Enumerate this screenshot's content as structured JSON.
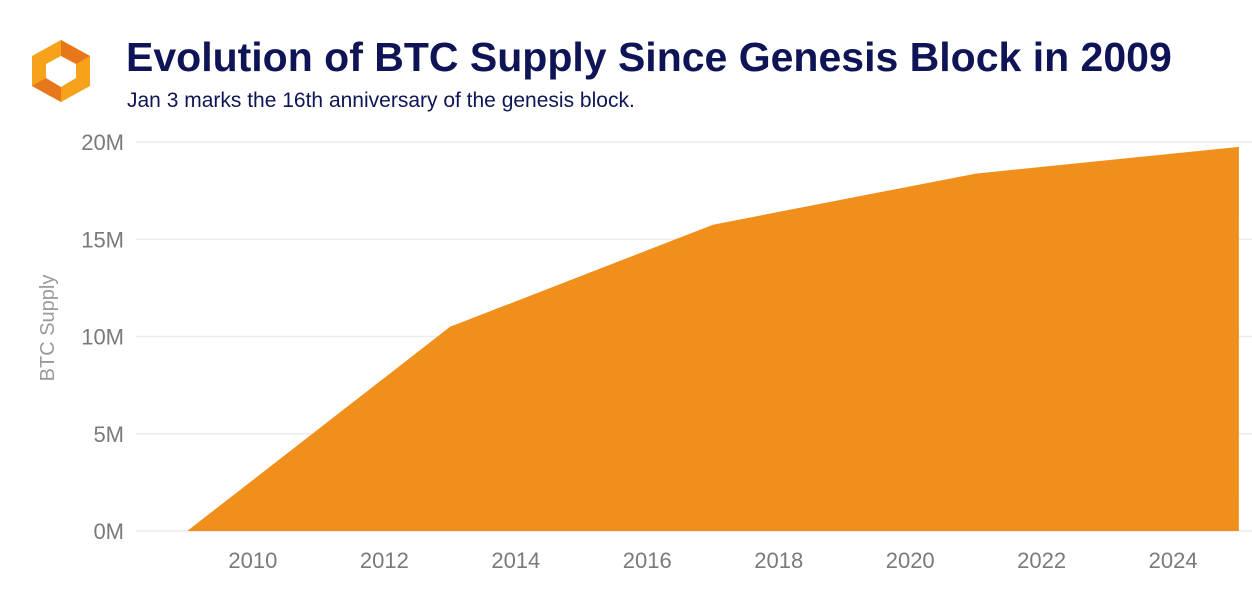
{
  "header": {
    "title": "Evolution of BTC Supply Since Genesis Block in 2009",
    "subtitle": "Jan 3 marks the 16th anniversary of the genesis block.",
    "logo_icon": "orange-hexagon-logo"
  },
  "colors": {
    "area_fill": "#f18f1c",
    "title": "#0f1456",
    "grid": "#ececec",
    "tick_text": "#7a7a7a"
  },
  "chart_data": {
    "type": "area",
    "title": "Evolution of BTC Supply Since Genesis Block in 2009",
    "subtitle": "Jan 3 marks the 16th anniversary of the genesis block.",
    "xlabel": "",
    "ylabel": "BTC Supply",
    "xlim": [
      2008.1,
      2025.2
    ],
    "ylim": [
      0,
      20000000
    ],
    "x_ticks": [
      2010,
      2012,
      2014,
      2016,
      2018,
      2020,
      2022,
      2024
    ],
    "x_tick_labels": [
      "2010",
      "2012",
      "2014",
      "2016",
      "2018",
      "2020",
      "2022",
      "2024"
    ],
    "y_ticks": [
      0,
      5000000,
      10000000,
      15000000,
      20000000
    ],
    "y_tick_labels": [
      "0M",
      "5M",
      "10M",
      "15M",
      "20M"
    ],
    "grid": true,
    "legend": "none",
    "series": [
      {
        "x": [
          2009.0,
          2013.0,
          2017.0,
          2021.0,
          2025.0
        ],
        "values": [
          0,
          10500000,
          15750000,
          18375000,
          19750000
        ]
      }
    ]
  }
}
